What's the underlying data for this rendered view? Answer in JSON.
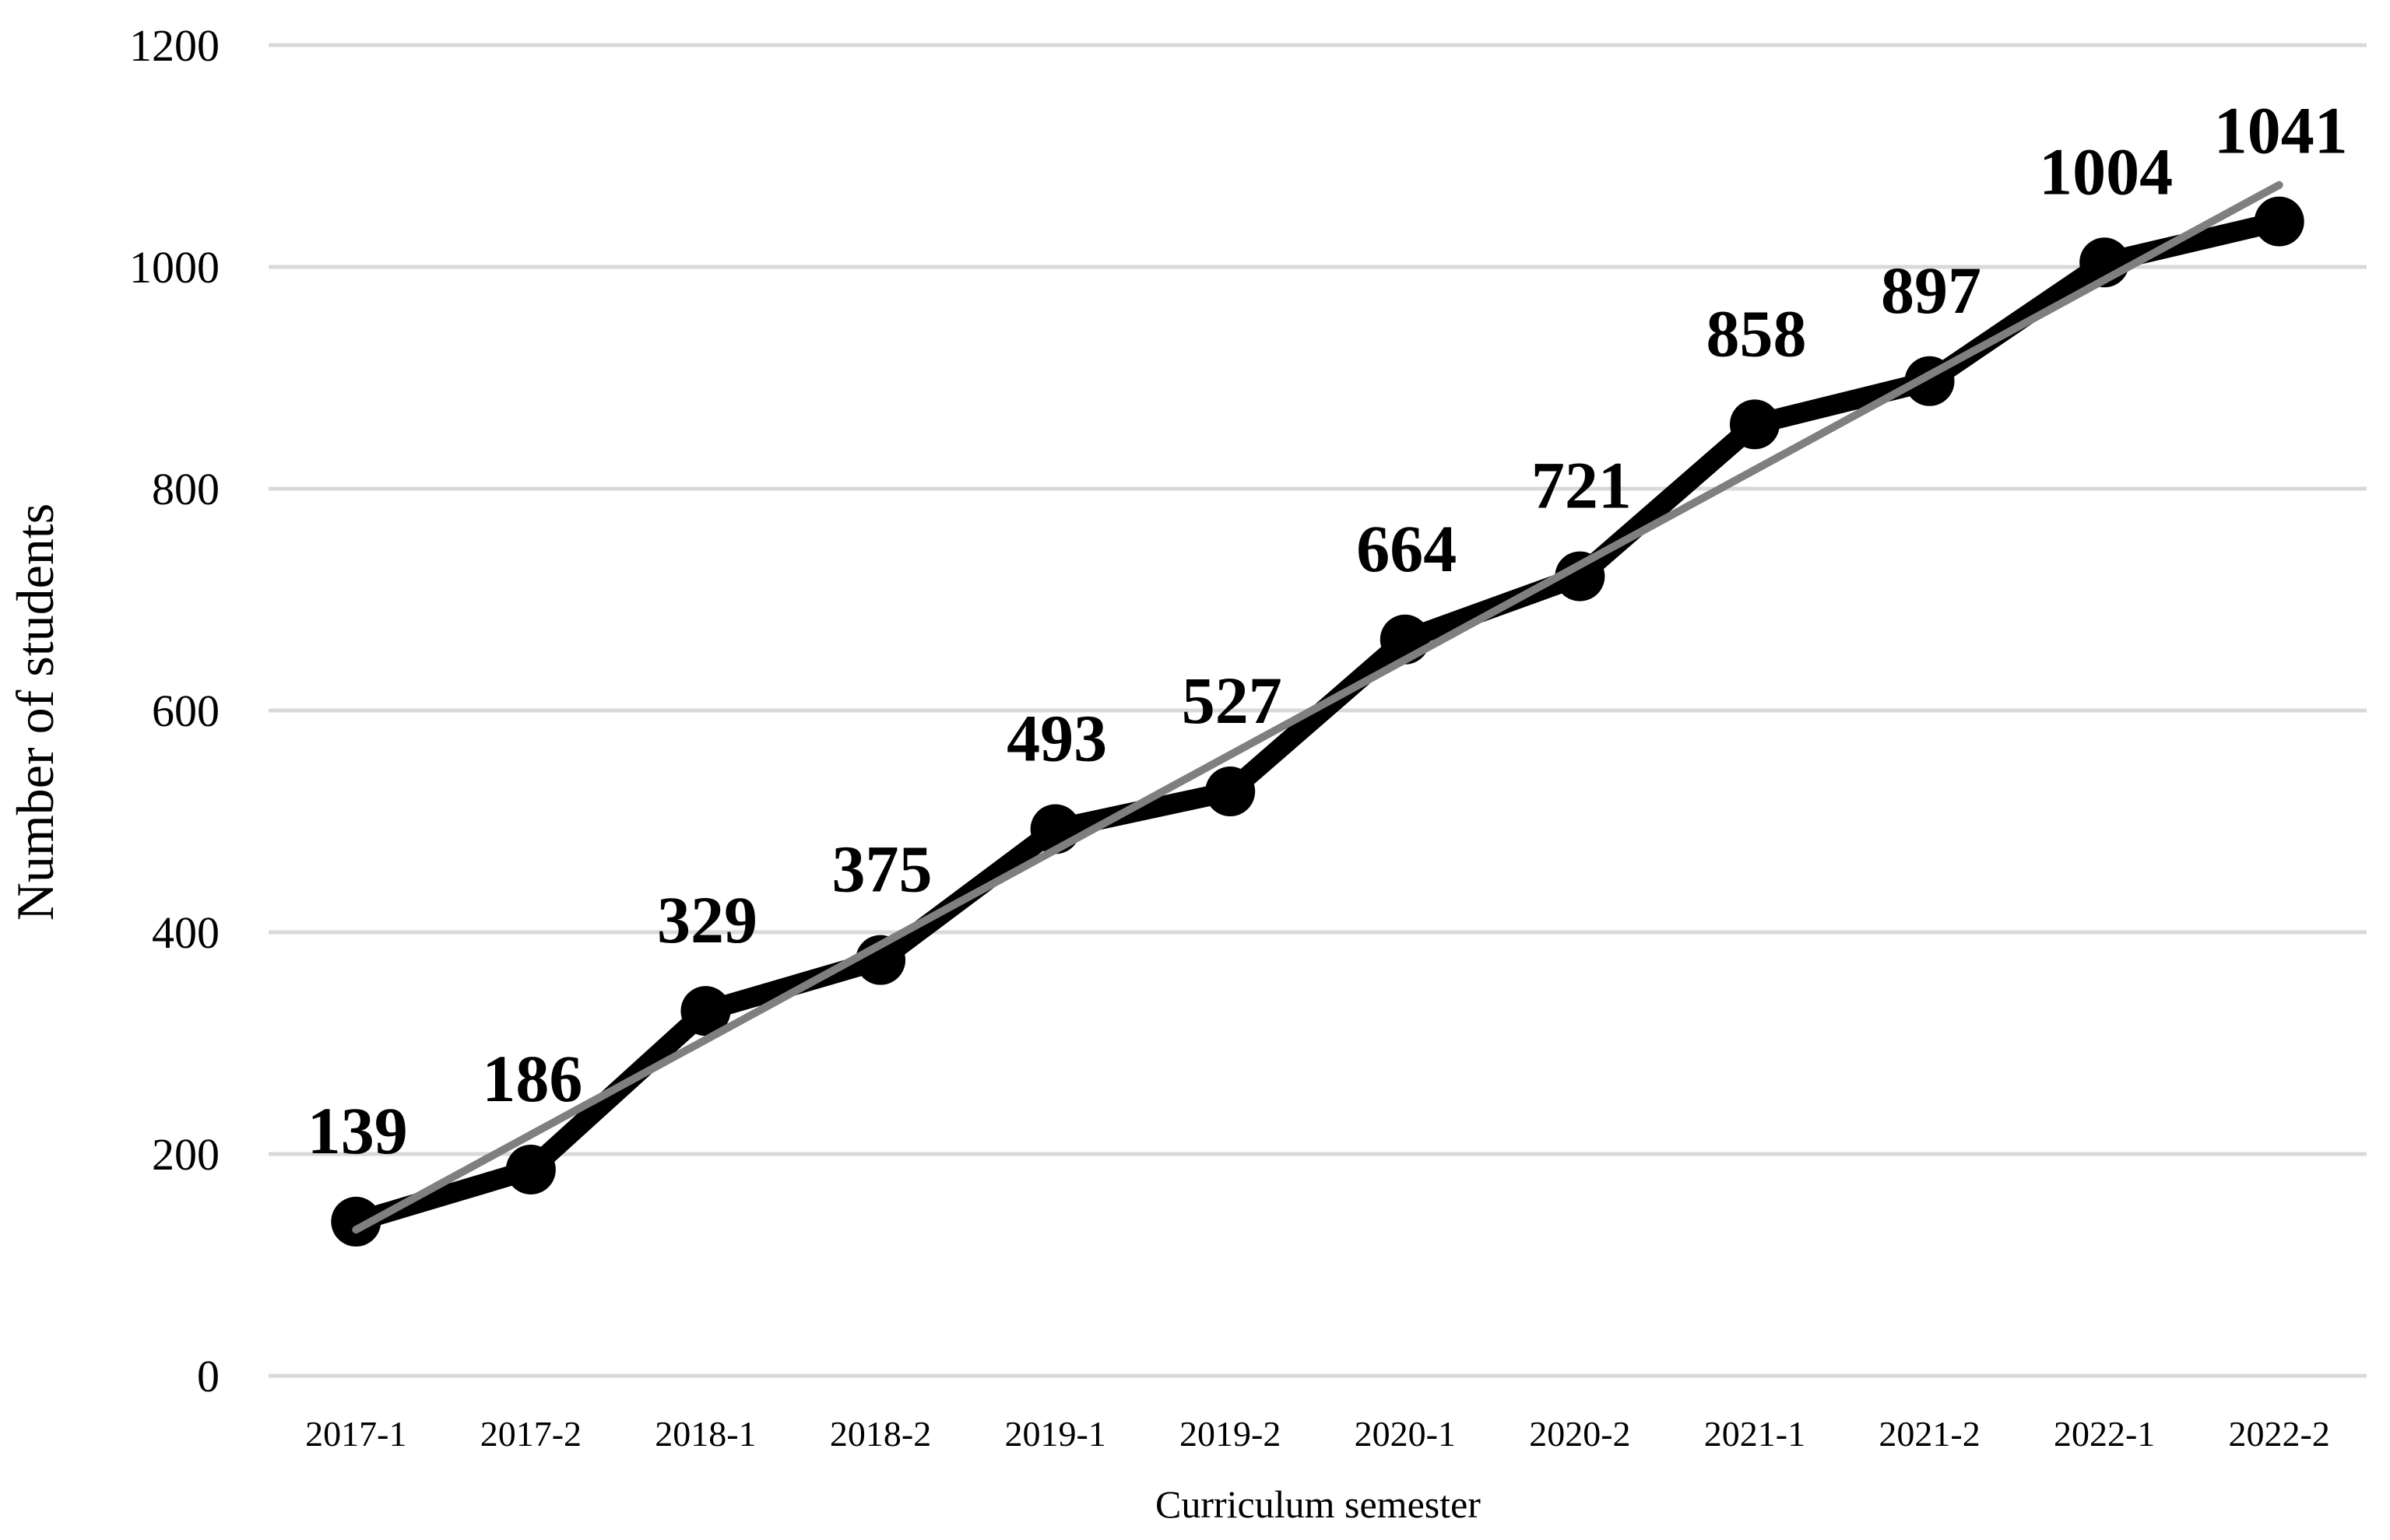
{
  "chart_data": {
    "type": "line",
    "title": "",
    "xlabel": "Curriculum semester",
    "ylabel": "Number of students",
    "ylim": [
      0,
      1200
    ],
    "yticks": [
      0,
      200,
      400,
      600,
      800,
      1000,
      1200
    ],
    "ytick_labels": [
      "0",
      "200",
      "400",
      "600",
      "800",
      "1000",
      "1200"
    ],
    "categories": [
      "2017-1",
      "2017-2",
      "2018-1",
      "2018-2",
      "2019-1",
      "2019-2",
      "2020-1",
      "2020-2",
      "2021-1",
      "2021-2",
      "2022-1",
      "2022-2"
    ],
    "series": [
      {
        "values": [
          139,
          186,
          329,
          375,
          493,
          527,
          664,
          721,
          858,
          897,
          1004,
          1041
        ],
        "data_labels": [
          "139",
          "186",
          "329",
          "375",
          "493",
          "527",
          "664",
          "721",
          "858",
          "897",
          "1004",
          "1041"
        ],
        "color": "#000000",
        "marker": "circle"
      }
    ],
    "trendline": {
      "type": "linear",
      "color": "#7f7f7f"
    },
    "grid": true,
    "gridline_color": "#d9d9d9",
    "legend": "none"
  }
}
